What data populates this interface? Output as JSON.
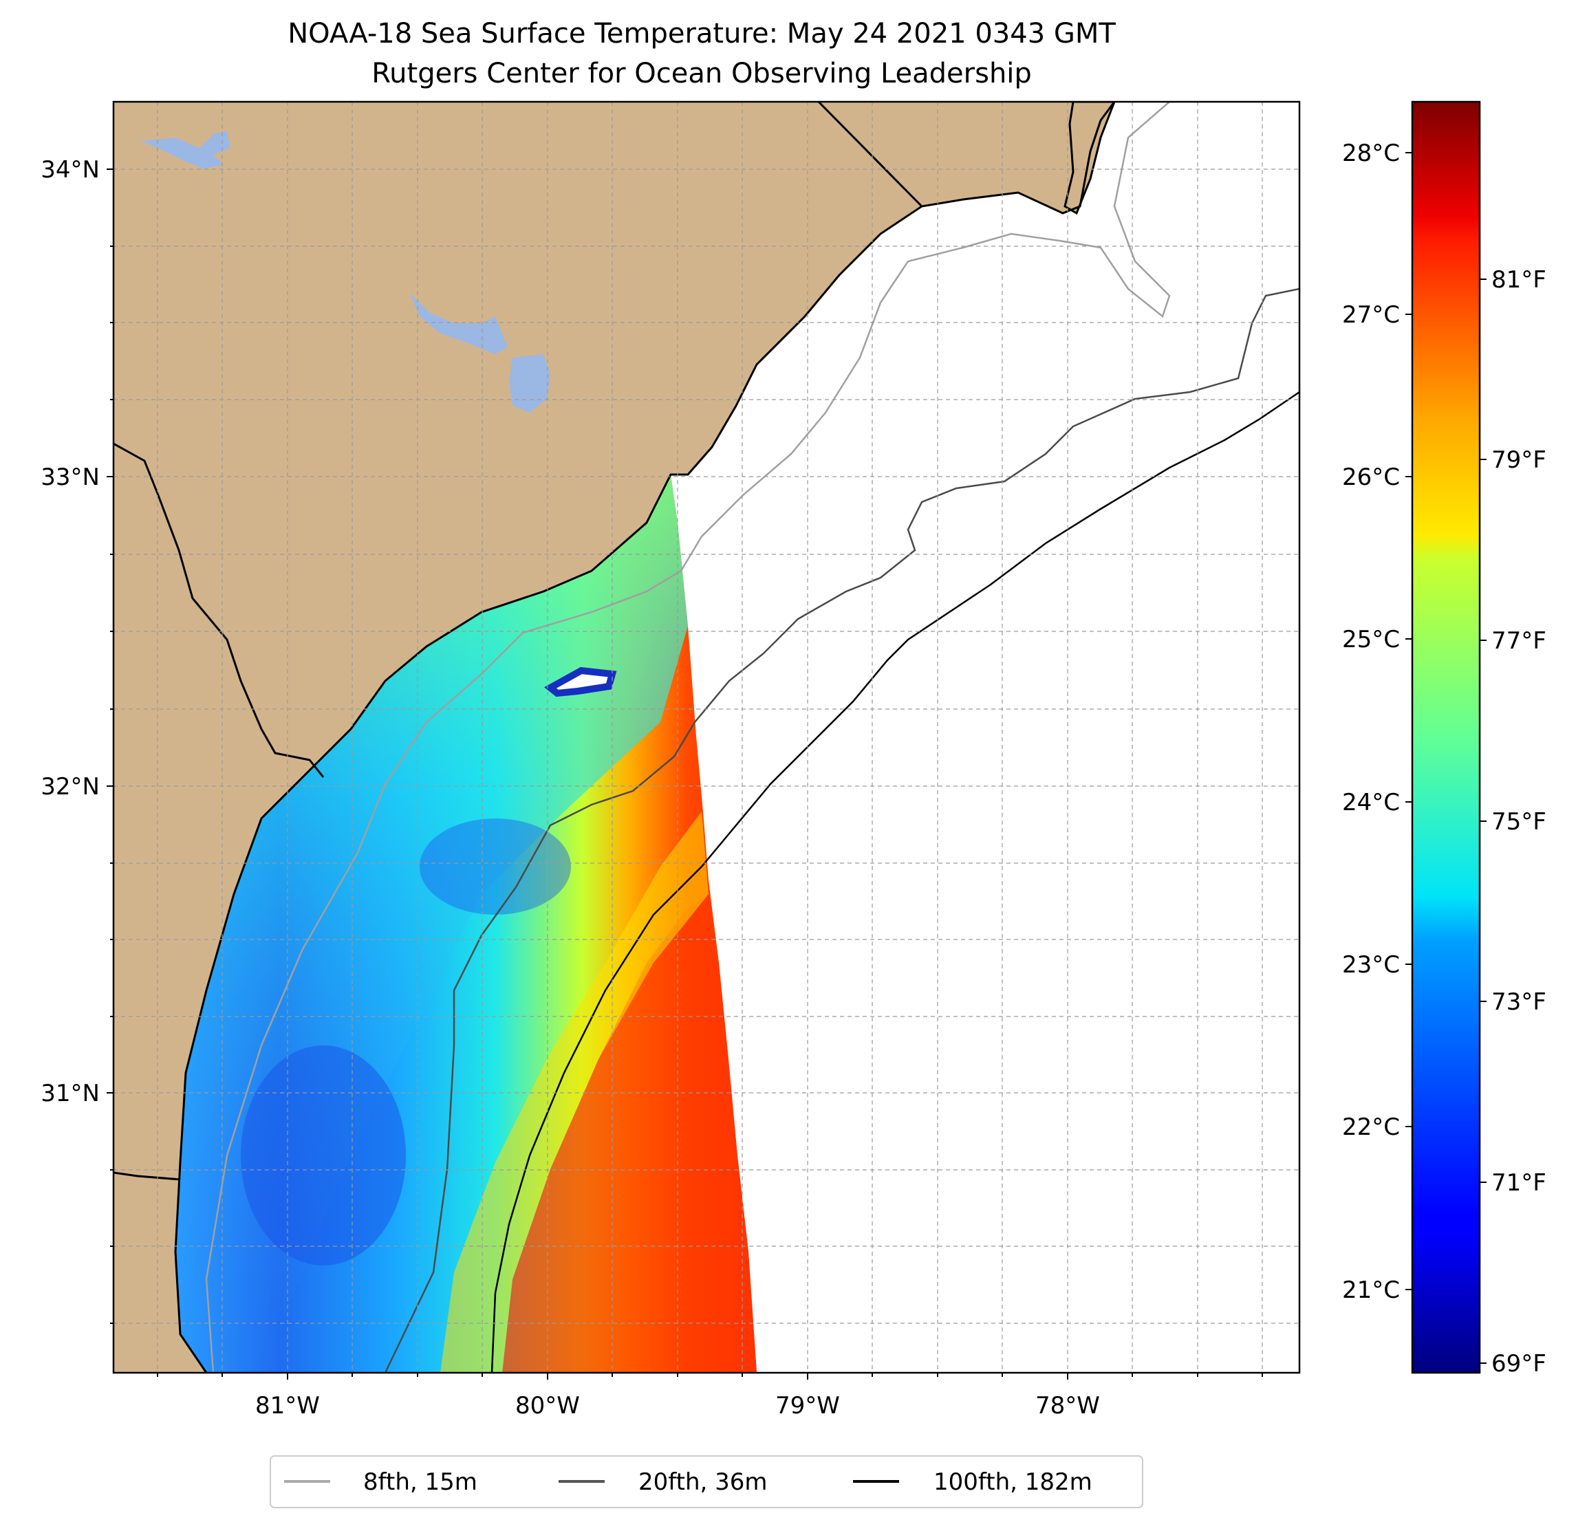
{
  "title": {
    "line1": "NOAA-18 Sea Surface Temperature: May 24 2021 0343 GMT",
    "line2": "Rutgers Center for Ocean Observing Leadership"
  },
  "lat_labels": [
    "34°N",
    "33°N",
    "32°N",
    "31°N"
  ],
  "lon_labels": [
    "81°W",
    "80°W",
    "79°W",
    "78°W"
  ],
  "colorbar": {
    "celsius_labels": [
      "28°C",
      "27°C",
      "26°C",
      "25°C",
      "24°C",
      "23°C",
      "22°C",
      "21°C"
    ],
    "fahrenheit_labels": [
      "81°F",
      "79°F",
      "77°F",
      "75°F",
      "73°F",
      "71°F",
      "69°F"
    ],
    "colormap": "jet",
    "range_c": [
      20.5,
      28.4
    ]
  },
  "legend": {
    "items": [
      {
        "label": "8fth, 15m",
        "color": "#aaaaaa"
      },
      {
        "label": "20fth, 36m",
        "color": "#555555"
      },
      {
        "label": "100fth, 182m",
        "color": "#000000"
      }
    ]
  },
  "colors": {
    "land": "#d2b48c",
    "water_body": "#9bb7e4",
    "no_data": "#ffffff"
  }
}
